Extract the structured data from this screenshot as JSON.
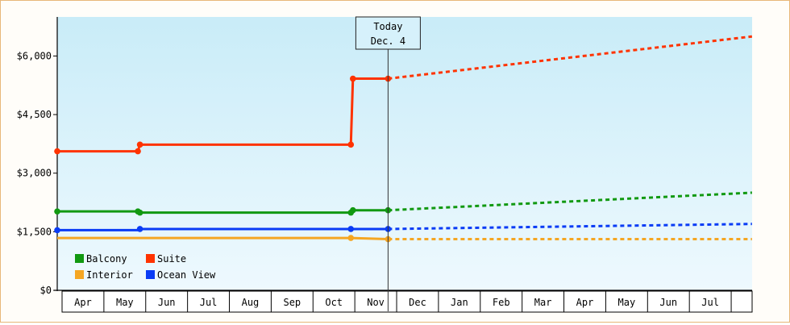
{
  "chart_data": {
    "type": "line",
    "title": "",
    "xlabel": "",
    "ylabel": "",
    "ylim": [
      0,
      7000
    ],
    "y_ticks": [
      {
        "value": 0,
        "label": "$0"
      },
      {
        "value": 1500,
        "label": "$1,500"
      },
      {
        "value": 3000,
        "label": "$3,000"
      },
      {
        "value": 4500,
        "label": "$4,500"
      },
      {
        "value": 6000,
        "label": "$6,000"
      }
    ],
    "x_tick_labels": [
      "Apr",
      "May",
      "Jun",
      "Jul",
      "Aug",
      "Sep",
      "Oct",
      "Nov",
      "Dec",
      "Jan",
      "Feb",
      "Mar",
      "Apr",
      "May",
      "Jun",
      "Jul"
    ],
    "today_marker": {
      "line1": "Today",
      "line2": "Dec. 4",
      "x": 8.0
    },
    "grid": false,
    "background": {
      "top": "#c9ecf8",
      "bottom": "#eef9fe"
    },
    "legend": {
      "placement": "bottom-left"
    },
    "series": [
      {
        "name": "Balcony",
        "color": "#119911",
        "actual": [
          [
            0,
            2020
          ],
          [
            1.95,
            2020
          ],
          [
            2.0,
            1990
          ],
          [
            7.1,
            1990
          ],
          [
            7.15,
            2050
          ],
          [
            8.0,
            2050
          ]
        ],
        "points": [
          0,
          1.95,
          2.0,
          7.1,
          7.15,
          8.0
        ],
        "forecast": [
          [
            8.0,
            2050
          ],
          [
            16.8,
            2500
          ]
        ]
      },
      {
        "name": "Suite",
        "color": "#ff3300",
        "actual": [
          [
            0,
            3560
          ],
          [
            1.95,
            3560
          ],
          [
            2.0,
            3730
          ],
          [
            7.1,
            3730
          ],
          [
            7.15,
            5420
          ],
          [
            8.0,
            5420
          ]
        ],
        "points": [
          0,
          1.95,
          2.0,
          7.1,
          7.15,
          8.0
        ],
        "forecast": [
          [
            8.0,
            5420
          ],
          [
            16.8,
            6500
          ]
        ]
      },
      {
        "name": "Interior",
        "color": "#f5a623",
        "actual": [
          [
            0,
            1340
          ],
          [
            7.1,
            1340
          ],
          [
            8.0,
            1310
          ]
        ],
        "points": [
          7.1,
          8.0
        ],
        "forecast": [
          [
            8.0,
            1310
          ],
          [
            16.8,
            1310
          ]
        ]
      },
      {
        "name": "Ocean View",
        "color": "#0a3cf5",
        "actual": [
          [
            0,
            1540
          ],
          [
            1.95,
            1540
          ],
          [
            2.0,
            1570
          ],
          [
            8.0,
            1570
          ]
        ],
        "points": [
          0,
          2.0,
          7.1,
          8.0
        ],
        "forecast": [
          [
            8.0,
            1570
          ],
          [
            16.8,
            1700
          ]
        ]
      }
    ]
  }
}
